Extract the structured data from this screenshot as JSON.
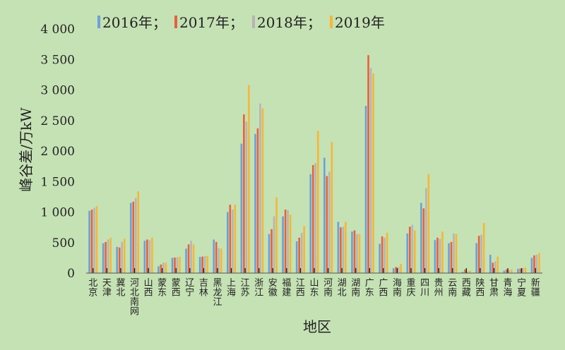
{
  "chart_data": {
    "type": "bar",
    "title": "",
    "xlabel": "地区",
    "ylabel": "峰谷差/万kW",
    "ylim": [
      0,
      4000
    ],
    "yticks": [
      0,
      500,
      1000,
      1500,
      2000,
      2500,
      3000,
      3500,
      4000
    ],
    "ytick_labels": [
      "0",
      "500",
      "1 000",
      "1 500",
      "2 000",
      "2 500",
      "3 000",
      "3 500",
      "4 000"
    ],
    "legend_position": "top",
    "categories": [
      "北京",
      "天津",
      "冀北",
      "河北南网",
      "山西",
      "蒙东",
      "蒙西",
      "辽宁",
      "吉林",
      "黑龙江",
      "上海",
      "江苏",
      "浙江",
      "安徽",
      "福建",
      "江西",
      "山东",
      "河南",
      "湖北",
      "湖南",
      "广东",
      "广西",
      "海南",
      "重庆",
      "四川",
      "贵州",
      "云南",
      "西藏",
      "陕西",
      "甘肃",
      "青海",
      "宁夏",
      "新疆"
    ],
    "series": [
      {
        "name": "2016年；",
        "color": "#6f9fd6",
        "values": [
          1020,
          490,
          430,
          1150,
          530,
          110,
          250,
          400,
          265,
          550,
          1000,
          2120,
          2280,
          640,
          930,
          520,
          1620,
          1890,
          840,
          680,
          2740,
          480,
          80,
          650,
          1150,
          540,
          490,
          20,
          490,
          300,
          40,
          70,
          250
        ]
      },
      {
        "name": "2017年；",
        "color": "#e8613c",
        "values": [
          1040,
          510,
          420,
          1170,
          550,
          140,
          255,
          470,
          270,
          510,
          1120,
          2600,
          2370,
          720,
          1040,
          580,
          1770,
          1590,
          750,
          700,
          3570,
          600,
          100,
          760,
          1060,
          580,
          510,
          60,
          610,
          170,
          60,
          75,
          290
        ]
      },
      {
        "name": "2018年；",
        "color": "#b5b5b5",
        "values": [
          1070,
          550,
          510,
          1230,
          540,
          170,
          260,
          530,
          280,
          410,
          1040,
          2480,
          2780,
          930,
          1030,
          660,
          1800,
          1660,
          760,
          640,
          3360,
          580,
          100,
          790,
          1390,
          560,
          650,
          30,
          630,
          190,
          50,
          85,
          300
        ]
      },
      {
        "name": "2019年",
        "color": "#f5b63a",
        "values": [
          1100,
          580,
          560,
          1340,
          580,
          170,
          270,
          470,
          280,
          400,
          1120,
          3080,
          2700,
          1240,
          960,
          770,
          2330,
          2150,
          840,
          640,
          3270,
          660,
          150,
          700,
          1620,
          680,
          640,
          40,
          820,
          270,
          60,
          90,
          330
        ]
      }
    ]
  }
}
